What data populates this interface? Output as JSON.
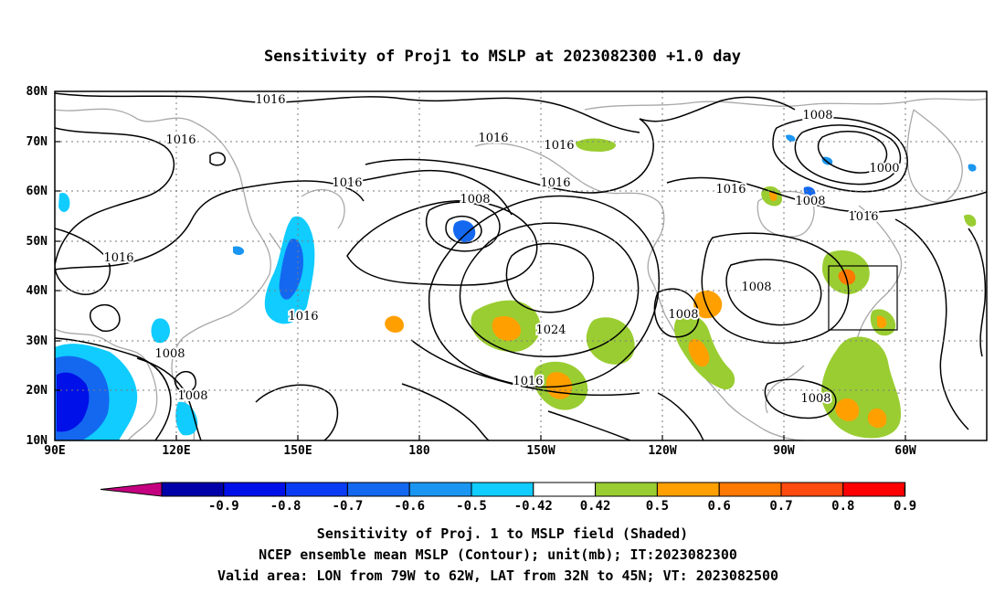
{
  "title": "Sensitivity of Proj1 to MSLP at 2023082300 +1.0 day",
  "lat_labels": [
    "80N",
    "70N",
    "60N",
    "50N",
    "40N",
    "30N",
    "20N",
    "10N"
  ],
  "lon_labels": [
    "90E",
    "120E",
    "150E",
    "180",
    "150W",
    "120W",
    "90W",
    "60W"
  ],
  "contour_labels": {
    "c1": "1016",
    "c2": "1016",
    "c3": "1016",
    "c4": "1016",
    "c5": "1016",
    "c6": "1016",
    "c7": "1016",
    "c8": "1016",
    "c9": "1016",
    "c10": "1016",
    "c11": "1008",
    "c12": "1008",
    "c13": "1008",
    "c14": "1024",
    "c15": "1008",
    "c16": "1008",
    "c17": "1008",
    "c18": "1008",
    "c19": "1000",
    "c20": "1016",
    "c21": "1008"
  },
  "colorbar": {
    "tick_labels": [
      "-0.9",
      "-0.8",
      "-0.7",
      "-0.6",
      "-0.5",
      "-0.42",
      "0.42",
      "0.5",
      "0.6",
      "0.7",
      "0.8",
      "0.9"
    ],
    "colors": [
      "#c40080",
      "#0000a8",
      "#0010e8",
      "#0b3cf5",
      "#1468f0",
      "#1a96f2",
      "#10ccff",
      "#ffffff",
      "#9acd32",
      "#ffa000",
      "#ff7800",
      "#ff4a10",
      "#ff0000",
      "#ff9ec8"
    ]
  },
  "footer": {
    "line1": "Sensitivity of Proj. 1 to MSLP field (Shaded)",
    "line2": "NCEP ensemble mean MSLP (Contour); unit(mb); IT:2023082300",
    "line3": "Valid area: LON from 79W to 62W, LAT from 32N to 45N; VT: 2023082500"
  }
}
